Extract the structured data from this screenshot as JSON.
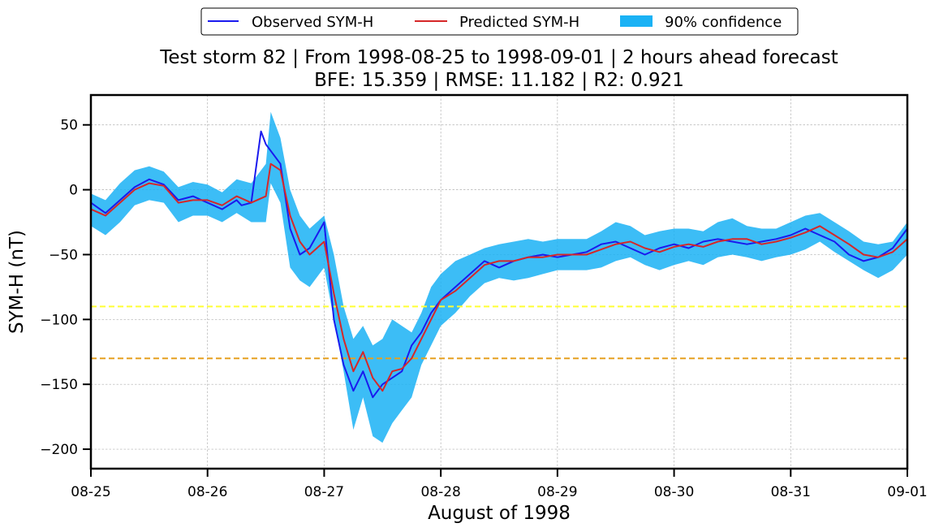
{
  "chart_data": {
    "type": "line",
    "title": "Test storm 82 | From 1998-08-25 to 1998-09-01 | 2 hours ahead forecast",
    "subtitle": "BFE: 15.359 | RMSE: 11.182 | R2: 0.921",
    "xlabel": "August of 1998",
    "ylabel": "SYM-H (nT)",
    "xlim": [
      "1998-08-25",
      "1998-09-01"
    ],
    "ylim": [
      -215,
      73
    ],
    "x_tick_labels": [
      "08-25",
      "08-26",
      "08-27",
      "08-28",
      "08-29",
      "08-30",
      "08-31",
      "09-01"
    ],
    "y_ticks": [
      50,
      0,
      -50,
      -100,
      -150,
      -200
    ],
    "y_tick_labels": [
      "50",
      "0",
      "−50",
      "−100",
      "−150",
      "−200"
    ],
    "grid": true,
    "legend_position": "top-center",
    "thresholds": [
      {
        "value": -90,
        "color": "#ffff33"
      },
      {
        "value": -130,
        "color": "#e6a020"
      }
    ],
    "series": [
      {
        "name": "Observed SYM-H",
        "color": "#1a1aee",
        "x": [
          "1998-08-25 00:00",
          "1998-08-25 03:00",
          "1998-08-25 06:00",
          "1998-08-25 09:00",
          "1998-08-25 12:00",
          "1998-08-25 15:00",
          "1998-08-25 18:00",
          "1998-08-25 21:00",
          "1998-08-26 00:00",
          "1998-08-26 03:00",
          "1998-08-26 06:00",
          "1998-08-26 07:00",
          "1998-08-26 09:00",
          "1998-08-26 11:00",
          "1998-08-26 12:00",
          "1998-08-26 15:00",
          "1998-08-26 17:00",
          "1998-08-26 19:00",
          "1998-08-26 21:00",
          "1998-08-27 00:00",
          "1998-08-27 02:00",
          "1998-08-27 04:00",
          "1998-08-27 06:00",
          "1998-08-27 08:00",
          "1998-08-27 10:00",
          "1998-08-27 12:00",
          "1998-08-27 14:00",
          "1998-08-27 16:00",
          "1998-08-27 18:00",
          "1998-08-27 20:00",
          "1998-08-27 22:00",
          "1998-08-28 00:00",
          "1998-08-28 03:00",
          "1998-08-28 06:00",
          "1998-08-28 09:00",
          "1998-08-28 12:00",
          "1998-08-28 15:00",
          "1998-08-28 18:00",
          "1998-08-28 21:00",
          "1998-08-29 00:00",
          "1998-08-29 03:00",
          "1998-08-29 06:00",
          "1998-08-29 09:00",
          "1998-08-29 12:00",
          "1998-08-29 15:00",
          "1998-08-29 18:00",
          "1998-08-29 21:00",
          "1998-08-30 00:00",
          "1998-08-30 03:00",
          "1998-08-30 06:00",
          "1998-08-30 09:00",
          "1998-08-30 12:00",
          "1998-08-30 15:00",
          "1998-08-30 18:00",
          "1998-08-30 21:00",
          "1998-08-31 00:00",
          "1998-08-31 03:00",
          "1998-08-31 06:00",
          "1998-08-31 09:00",
          "1998-08-31 12:00",
          "1998-08-31 15:00",
          "1998-08-31 18:00",
          "1998-08-31 21:00",
          "1998-09-01 00:00"
        ],
        "values": [
          -10,
          -18,
          -8,
          2,
          8,
          4,
          -8,
          -5,
          -10,
          -15,
          -8,
          -12,
          -10,
          45,
          35,
          20,
          -30,
          -50,
          -45,
          -25,
          -100,
          -135,
          -155,
          -140,
          -160,
          -150,
          -145,
          -140,
          -120,
          -110,
          -95,
          -85,
          -75,
          -65,
          -55,
          -60,
          -55,
          -52,
          -50,
          -52,
          -50,
          -48,
          -42,
          -40,
          -45,
          -50,
          -45,
          -42,
          -45,
          -40,
          -38,
          -40,
          -42,
          -40,
          -38,
          -35,
          -30,
          -35,
          -40,
          -50,
          -55,
          -52,
          -45,
          -30
        ]
      },
      {
        "name": "Predicted SYM-H",
        "color": "#d62728",
        "x": [
          "1998-08-25 00:00",
          "1998-08-25 03:00",
          "1998-08-25 06:00",
          "1998-08-25 09:00",
          "1998-08-25 12:00",
          "1998-08-25 15:00",
          "1998-08-25 18:00",
          "1998-08-25 21:00",
          "1998-08-26 00:00",
          "1998-08-26 03:00",
          "1998-08-26 06:00",
          "1998-08-26 09:00",
          "1998-08-26 12:00",
          "1998-08-26 13:00",
          "1998-08-26 15:00",
          "1998-08-26 17:00",
          "1998-08-26 19:00",
          "1998-08-26 21:00",
          "1998-08-27 00:00",
          "1998-08-27 02:00",
          "1998-08-27 04:00",
          "1998-08-27 06:00",
          "1998-08-27 08:00",
          "1998-08-27 10:00",
          "1998-08-27 12:00",
          "1998-08-27 14:00",
          "1998-08-27 16:00",
          "1998-08-27 18:00",
          "1998-08-27 20:00",
          "1998-08-27 22:00",
          "1998-08-28 00:00",
          "1998-08-28 03:00",
          "1998-08-28 06:00",
          "1998-08-28 09:00",
          "1998-08-28 12:00",
          "1998-08-28 15:00",
          "1998-08-28 18:00",
          "1998-08-28 21:00",
          "1998-08-29 00:00",
          "1998-08-29 03:00",
          "1998-08-29 06:00",
          "1998-08-29 09:00",
          "1998-08-29 12:00",
          "1998-08-29 15:00",
          "1998-08-29 18:00",
          "1998-08-29 21:00",
          "1998-08-30 00:00",
          "1998-08-30 03:00",
          "1998-08-30 06:00",
          "1998-08-30 09:00",
          "1998-08-30 12:00",
          "1998-08-30 15:00",
          "1998-08-30 18:00",
          "1998-08-30 21:00",
          "1998-08-31 00:00",
          "1998-08-31 03:00",
          "1998-08-31 06:00",
          "1998-08-31 09:00",
          "1998-08-31 12:00",
          "1998-08-31 15:00",
          "1998-08-31 18:00",
          "1998-08-31 21:00",
          "1998-09-01 00:00"
        ],
        "values": [
          -15,
          -20,
          -10,
          0,
          5,
          3,
          -10,
          -8,
          -8,
          -12,
          -5,
          -10,
          -5,
          20,
          15,
          -20,
          -40,
          -50,
          -40,
          -80,
          -115,
          -140,
          -125,
          -145,
          -155,
          -140,
          -138,
          -130,
          -115,
          -100,
          -85,
          -78,
          -68,
          -58,
          -55,
          -55,
          -52,
          -52,
          -50,
          -50,
          -50,
          -46,
          -42,
          -40,
          -45,
          -48,
          -44,
          -42,
          -44,
          -40,
          -38,
          -38,
          -42,
          -40,
          -37,
          -33,
          -28,
          -35,
          -42,
          -50,
          -52,
          -48,
          -38
        ]
      }
    ],
    "band": {
      "name": "90% confidence",
      "color": "#1ab2f5",
      "x": [
        "1998-08-25 00:00",
        "1998-08-25 03:00",
        "1998-08-25 06:00",
        "1998-08-25 09:00",
        "1998-08-25 12:00",
        "1998-08-25 15:00",
        "1998-08-25 18:00",
        "1998-08-25 21:00",
        "1998-08-26 00:00",
        "1998-08-26 03:00",
        "1998-08-26 06:00",
        "1998-08-26 09:00",
        "1998-08-26 12:00",
        "1998-08-26 13:00",
        "1998-08-26 15:00",
        "1998-08-26 17:00",
        "1998-08-26 19:00",
        "1998-08-26 21:00",
        "1998-08-27 00:00",
        "1998-08-27 02:00",
        "1998-08-27 04:00",
        "1998-08-27 06:00",
        "1998-08-27 08:00",
        "1998-08-27 10:00",
        "1998-08-27 12:00",
        "1998-08-27 14:00",
        "1998-08-27 16:00",
        "1998-08-27 18:00",
        "1998-08-27 20:00",
        "1998-08-27 22:00",
        "1998-08-28 00:00",
        "1998-08-28 03:00",
        "1998-08-28 06:00",
        "1998-08-28 09:00",
        "1998-08-28 12:00",
        "1998-08-28 15:00",
        "1998-08-28 18:00",
        "1998-08-28 21:00",
        "1998-08-29 00:00",
        "1998-08-29 03:00",
        "1998-08-29 06:00",
        "1998-08-29 09:00",
        "1998-08-29 12:00",
        "1998-08-29 15:00",
        "1998-08-29 18:00",
        "1998-08-29 21:00",
        "1998-08-30 00:00",
        "1998-08-30 03:00",
        "1998-08-30 06:00",
        "1998-08-30 09:00",
        "1998-08-30 12:00",
        "1998-08-30 15:00",
        "1998-08-30 18:00",
        "1998-08-30 21:00",
        "1998-08-31 00:00",
        "1998-08-31 03:00",
        "1998-08-31 06:00",
        "1998-08-31 09:00",
        "1998-08-31 12:00",
        "1998-08-31 15:00",
        "1998-08-31 18:00",
        "1998-08-31 21:00",
        "1998-09-01 00:00"
      ],
      "upper": [
        -3,
        -8,
        5,
        15,
        18,
        14,
        2,
        6,
        4,
        -2,
        8,
        5,
        20,
        60,
        40,
        0,
        -20,
        -30,
        -20,
        -50,
        -90,
        -115,
        -105,
        -120,
        -115,
        -100,
        -105,
        -110,
        -95,
        -75,
        -65,
        -55,
        -50,
        -45,
        -42,
        -40,
        -38,
        -40,
        -38,
        -38,
        -38,
        -32,
        -25,
        -28,
        -35,
        -32,
        -30,
        -30,
        -32,
        -25,
        -22,
        -28,
        -30,
        -30,
        -25,
        -20,
        -18,
        -25,
        -32,
        -40,
        -42,
        -40,
        -25
      ],
      "lower": [
        -28,
        -35,
        -25,
        -12,
        -8,
        -10,
        -25,
        -20,
        -20,
        -25,
        -18,
        -25,
        -25,
        5,
        -10,
        -60,
        -70,
        -75,
        -60,
        -100,
        -140,
        -185,
        -160,
        -190,
        -195,
        -180,
        -170,
        -160,
        -135,
        -120,
        -105,
        -95,
        -82,
        -72,
        -68,
        -70,
        -68,
        -65,
        -62,
        -62,
        -62,
        -60,
        -55,
        -52,
        -58,
        -62,
        -58,
        -55,
        -58,
        -52,
        -50,
        -52,
        -55,
        -52,
        -50,
        -46,
        -40,
        -48,
        -55,
        -62,
        -68,
        -62,
        -50
      ]
    }
  }
}
